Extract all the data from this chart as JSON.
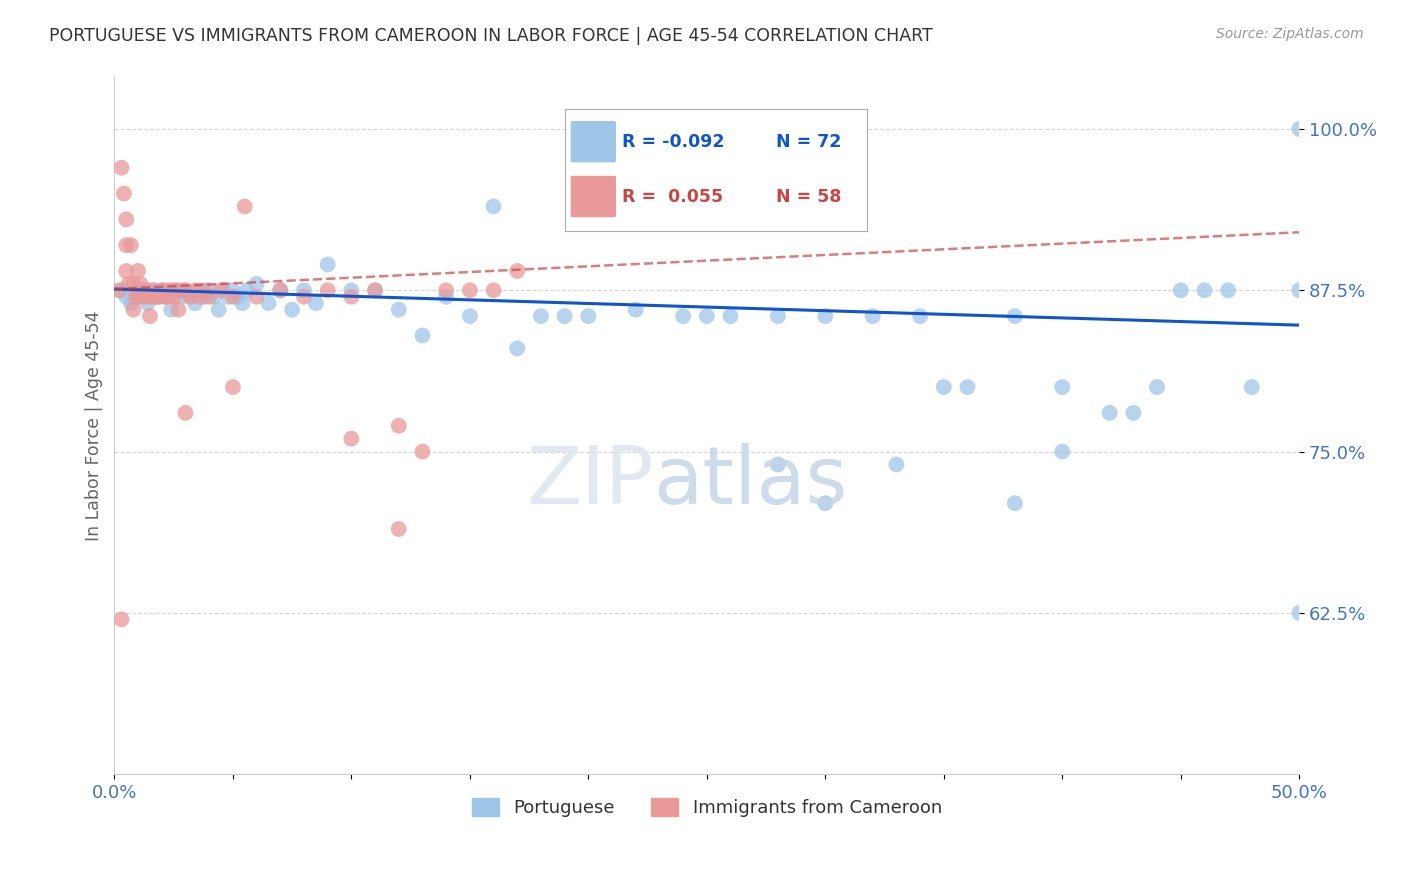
{
  "title": "PORTUGUESE VS IMMIGRANTS FROM CAMEROON IN LABOR FORCE | AGE 45-54 CORRELATION CHART",
  "source": "Source: ZipAtlas.com",
  "ylabel": "In Labor Force | Age 45-54",
  "xlim": [
    0.0,
    0.5
  ],
  "ylim": [
    0.5,
    1.04
  ],
  "xtick_positions": [
    0.0,
    0.05,
    0.1,
    0.15,
    0.2,
    0.25,
    0.3,
    0.35,
    0.4,
    0.45,
    0.5
  ],
  "xticklabels": [
    "0.0%",
    "",
    "",
    "",
    "",
    "",
    "",
    "",
    "",
    "",
    "50.0%"
  ],
  "ytick_positions": [
    0.625,
    0.75,
    0.875,
    1.0
  ],
  "yticklabels": [
    "62.5%",
    "75.0%",
    "87.5%",
    "100.0%"
  ],
  "blue_color": "#9fc5e8",
  "pink_color": "#ea9999",
  "trend_blue_color": "#1155cc",
  "trend_pink_color": "#cc4444",
  "blue_scatter_x": [
    0.003,
    0.005,
    0.007,
    0.01,
    0.012,
    0.014,
    0.016,
    0.018,
    0.02,
    0.022,
    0.024,
    0.026,
    0.028,
    0.03,
    0.032,
    0.034,
    0.036,
    0.038,
    0.04,
    0.042,
    0.044,
    0.046,
    0.048,
    0.05,
    0.052,
    0.054,
    0.056,
    0.06,
    0.065,
    0.07,
    0.075,
    0.08,
    0.085,
    0.09,
    0.1,
    0.11,
    0.12,
    0.13,
    0.14,
    0.15,
    0.16,
    0.17,
    0.18,
    0.19,
    0.2,
    0.22,
    0.24,
    0.26,
    0.28,
    0.3,
    0.32,
    0.34,
    0.36,
    0.38,
    0.4,
    0.42,
    0.44,
    0.46,
    0.48,
    0.5,
    0.25,
    0.3,
    0.35,
    0.4,
    0.45,
    0.5,
    0.5,
    0.28,
    0.33,
    0.38,
    0.43,
    0.47
  ],
  "blue_scatter_y": [
    0.875,
    0.87,
    0.865,
    0.875,
    0.87,
    0.865,
    0.875,
    0.87,
    0.875,
    0.87,
    0.86,
    0.875,
    0.87,
    0.875,
    0.87,
    0.865,
    0.875,
    0.87,
    0.875,
    0.87,
    0.86,
    0.875,
    0.87,
    0.875,
    0.87,
    0.865,
    0.875,
    0.88,
    0.865,
    0.875,
    0.86,
    0.875,
    0.865,
    0.895,
    0.875,
    0.875,
    0.86,
    0.84,
    0.87,
    0.855,
    0.94,
    0.83,
    0.855,
    0.855,
    0.855,
    0.86,
    0.855,
    0.855,
    0.74,
    0.855,
    0.855,
    0.855,
    0.8,
    0.855,
    0.8,
    0.78,
    0.8,
    0.875,
    0.8,
    1.0,
    0.855,
    0.71,
    0.8,
    0.75,
    0.875,
    0.875,
    0.625,
    0.855,
    0.74,
    0.71,
    0.78,
    0.875
  ],
  "pink_scatter_x": [
    0.002,
    0.003,
    0.004,
    0.005,
    0.005,
    0.005,
    0.006,
    0.007,
    0.008,
    0.008,
    0.009,
    0.01,
    0.01,
    0.011,
    0.012,
    0.013,
    0.014,
    0.015,
    0.015,
    0.016,
    0.017,
    0.018,
    0.019,
    0.02,
    0.021,
    0.022,
    0.023,
    0.024,
    0.025,
    0.026,
    0.027,
    0.028,
    0.03,
    0.032,
    0.034,
    0.036,
    0.038,
    0.04,
    0.045,
    0.05,
    0.055,
    0.06,
    0.07,
    0.08,
    0.09,
    0.1,
    0.11,
    0.12,
    0.13,
    0.14,
    0.15,
    0.16,
    0.003,
    0.1,
    0.05,
    0.03,
    0.12,
    0.17
  ],
  "pink_scatter_y": [
    0.875,
    0.97,
    0.95,
    0.93,
    0.91,
    0.89,
    0.88,
    0.91,
    0.88,
    0.86,
    0.87,
    0.89,
    0.87,
    0.88,
    0.875,
    0.87,
    0.875,
    0.87,
    0.855,
    0.87,
    0.875,
    0.87,
    0.87,
    0.875,
    0.87,
    0.875,
    0.87,
    0.875,
    0.87,
    0.875,
    0.86,
    0.875,
    0.875,
    0.87,
    0.875,
    0.87,
    0.875,
    0.87,
    0.875,
    0.87,
    0.94,
    0.87,
    0.875,
    0.87,
    0.875,
    0.87,
    0.875,
    0.77,
    0.75,
    0.875,
    0.875,
    0.875,
    0.62,
    0.76,
    0.8,
    0.78,
    0.69,
    0.89
  ],
  "background_color": "#ffffff",
  "grid_color": "#cccccc",
  "title_color": "#333333",
  "axis_color": "#4472c4",
  "ylabel_color": "#666666",
  "watermark_zip_color": "#d0d8e8",
  "watermark_atlas_color": "#c8d8e8"
}
